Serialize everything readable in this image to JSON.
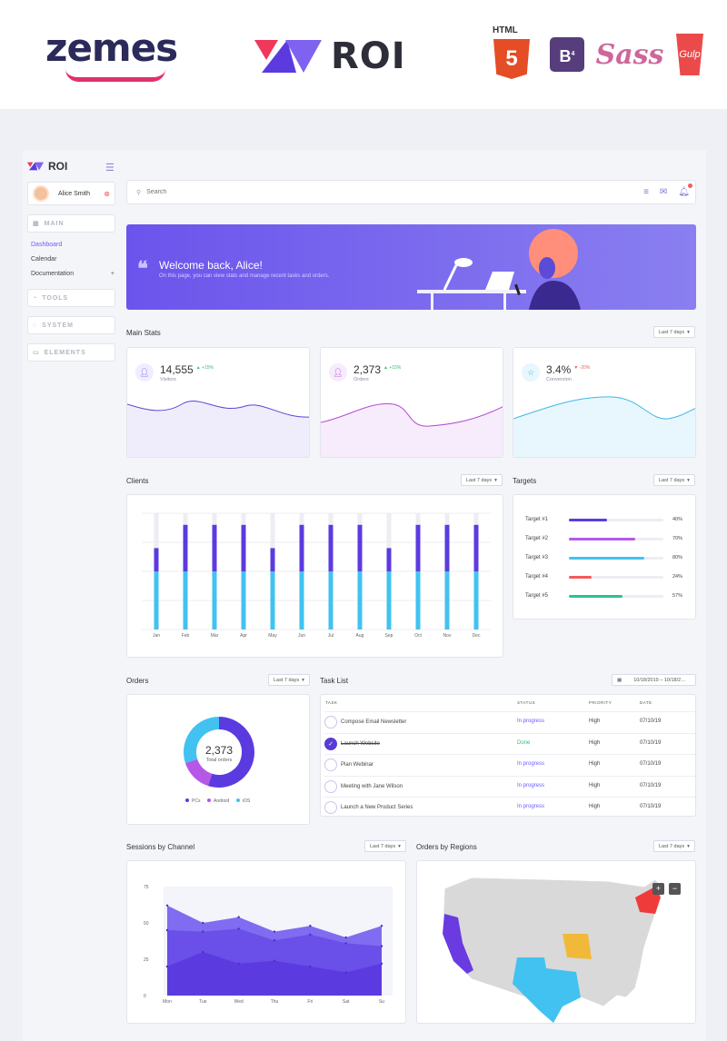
{
  "banner": {
    "brand": "zemes",
    "product": "ROI",
    "tech": {
      "html_label": "HTML",
      "html_num": "5",
      "bs_letter": "B",
      "bs_ver": "4",
      "sass": "Sass",
      "gulp": "Gulp"
    }
  },
  "sidebar": {
    "brand": "ROI",
    "user_name": "Alice Smith",
    "sections": [
      {
        "label": "MAIN"
      },
      {
        "label": "TOOLS"
      },
      {
        "label": "SYSTEM"
      },
      {
        "label": "ELEMENTS"
      }
    ],
    "nav": [
      {
        "label": "Dashboard"
      },
      {
        "label": "Calendar"
      },
      {
        "label": "Documentation"
      }
    ]
  },
  "search": {
    "placeholder": "Search"
  },
  "welcome": {
    "title": "Welcome back, Alice!",
    "subtitle": "On this page, you can view stats and manage recent tasks and orders."
  },
  "main_stats": {
    "title": "Main Stats",
    "filter": "Last 7 days",
    "cards": [
      {
        "value": "14,555",
        "delta": "+15%",
        "label": "Visitors",
        "color": "#5b45d8",
        "delta_color": "#2fbf71"
      },
      {
        "value": "2,373",
        "delta": "+15%",
        "label": "Orders",
        "color": "#b54ad6",
        "delta_color": "#2fbf71"
      },
      {
        "value": "3.4%",
        "delta": "-20%",
        "label": "Conversion",
        "color": "#3fb7e8",
        "delta_color": "#f35b5b"
      }
    ]
  },
  "clients": {
    "title": "Clients",
    "filter": "Last 7 days"
  },
  "chart_data": [
    {
      "type": "bar",
      "title": "Clients",
      "categories": [
        "Jan",
        "Feb",
        "Mar",
        "Apr",
        "May",
        "Jun",
        "Jul",
        "Aug",
        "Sep",
        "Oct",
        "Nov",
        "Dec"
      ],
      "series": [
        {
          "values": [
            2,
            2,
            2,
            2,
            2,
            2,
            2,
            2,
            2,
            2,
            2,
            2
          ],
          "color": "#42c2f0"
        },
        {
          "values": [
            0.8,
            1.6,
            1.6,
            1.6,
            0.8,
            1.6,
            1.6,
            1.6,
            0.8,
            1.6,
            1.6,
            1.6
          ],
          "color": "#5b3be0"
        }
      ],
      "ylim": [
        0,
        4
      ]
    },
    {
      "type": "pie",
      "title": "Orders",
      "categories": [
        "PCs",
        "Android",
        "iOS"
      ],
      "values": [
        55,
        15,
        30
      ],
      "colors": [
        "#5b3be0",
        "#b558e8",
        "#42c2f0"
      ],
      "center_value": "2,373",
      "center_label": "Total orders"
    },
    {
      "type": "area",
      "title": "Sessions by Channel",
      "categories": [
        "Mon",
        "Tue",
        "Wed",
        "Thu",
        "Fri",
        "Sat",
        "Su"
      ],
      "yticks": [
        0,
        25,
        50,
        75
      ],
      "ylim": [
        0,
        75
      ],
      "series": [
        {
          "values": [
            62,
            50,
            54,
            44,
            48,
            40,
            48
          ],
          "color": "#7f6cf0"
        },
        {
          "values": [
            45,
            44,
            46,
            38,
            42,
            36,
            34
          ],
          "color": "#6a4fe8"
        },
        {
          "values": [
            20,
            30,
            22,
            24,
            20,
            16,
            22
          ],
          "color": "#5b3be0"
        }
      ]
    }
  ],
  "targets": {
    "title": "Targets",
    "filter": "Last 7 days",
    "items": [
      {
        "label": "Target #1",
        "pct_label": "40%",
        "value": 0.4,
        "color": "#5b3be0"
      },
      {
        "label": "Target #2",
        "pct_label": "70%",
        "value": 0.7,
        "color": "#b558e8"
      },
      {
        "label": "Target #3",
        "pct_label": "80%",
        "value": 0.8,
        "color": "#42c2f0"
      },
      {
        "label": "Target #4",
        "pct_label": "24%",
        "value": 0.24,
        "color": "#f35b5b"
      },
      {
        "label": "Target #5",
        "pct_label": "57%",
        "value": 0.57,
        "color": "#2bc48a"
      }
    ]
  },
  "orders": {
    "title": "Orders",
    "filter": "Last 7 days"
  },
  "tasks": {
    "title": "Task List",
    "date_range": "10/18/2019 – 10/18/2…",
    "headers": {
      "task": "TASK",
      "status": "STATUS",
      "priority": "PRIORITY",
      "date": "DATE"
    },
    "rows": [
      {
        "name": "Compose Email Newsletter",
        "status": "In progress",
        "priority": "High",
        "date": "07/10/19",
        "done": false
      },
      {
        "name": "Launch Website",
        "status": "Done",
        "priority": "High",
        "date": "07/10/19",
        "done": true
      },
      {
        "name": "Plan Webinar",
        "status": "In progress",
        "priority": "High",
        "date": "07/10/19",
        "done": false
      },
      {
        "name": "Meeting with Jane Wilson",
        "status": "In progress",
        "priority": "High",
        "date": "07/10/19",
        "done": false
      },
      {
        "name": "Launch a New Product Series",
        "status": "In progress",
        "priority": "High",
        "date": "07/10/19",
        "done": false
      }
    ],
    "status_colors": {
      "progress": "#6a5cff",
      "done": "#2fbf71"
    }
  },
  "sessions": {
    "title": "Sessions by Channel",
    "filter": "Last 7 days"
  },
  "regions": {
    "title": "Orders by Regions",
    "filter": "Last 7 days",
    "zoom_in": "+",
    "zoom_out": "−"
  },
  "colors": {
    "accent": "#5b3be0",
    "brand_pink": "#e1306c"
  }
}
